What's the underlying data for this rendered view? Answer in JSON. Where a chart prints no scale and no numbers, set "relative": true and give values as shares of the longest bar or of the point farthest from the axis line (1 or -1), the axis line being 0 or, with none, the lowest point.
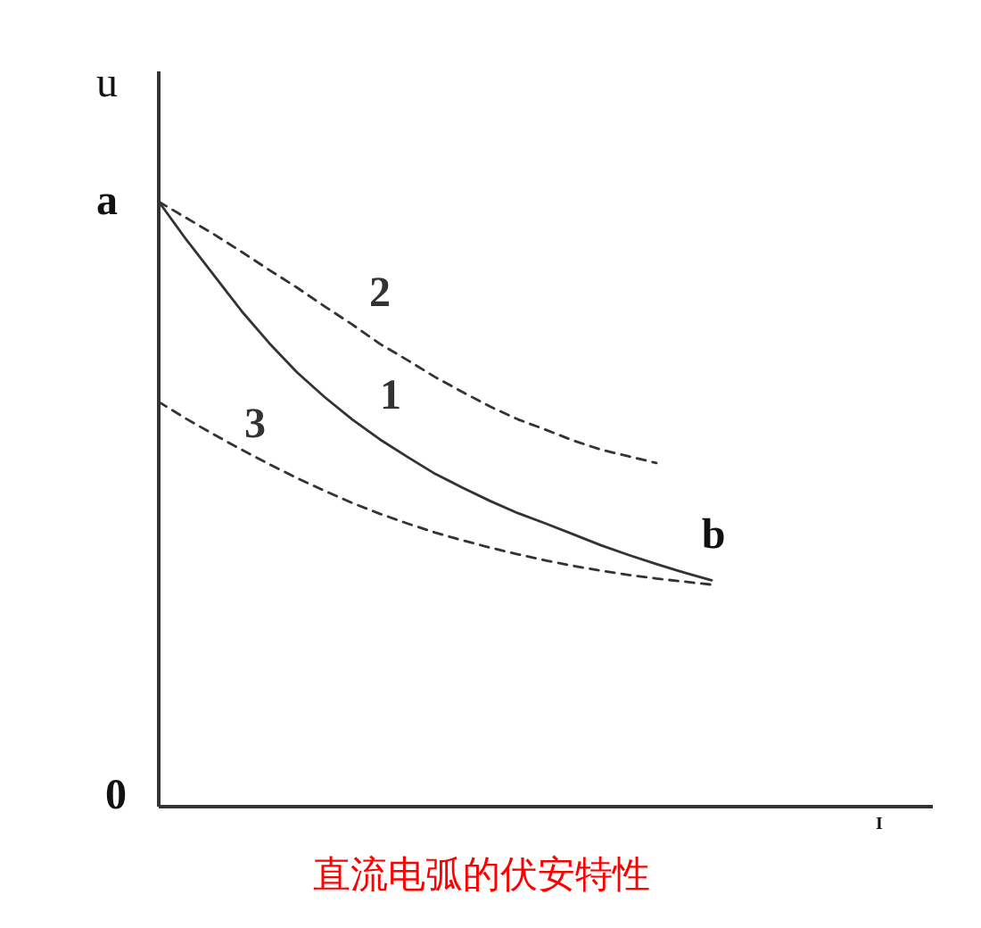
{
  "chart_data": {
    "type": "line",
    "title": "直流电弧的伏安特性",
    "xlabel": "I",
    "ylabel": "u",
    "relative": true,
    "categories": [
      null,
      null,
      null,
      null,
      null,
      null,
      null,
      null,
      null,
      null,
      null,
      null,
      null,
      null,
      null,
      null,
      null,
      null,
      null,
      null,
      null,
      null,
      null,
      null,
      null,
      null,
      null,
      null,
      null
    ],
    "series": [
      {
        "name": "1",
        "color": "#333333",
        "line_style": "solid",
        "values": [
          1.0,
          0.937,
          0.878,
          0.819,
          0.766,
          0.718,
          0.677,
          0.64,
          0.607,
          0.578,
          0.55,
          0.527,
          0.505,
          0.485,
          0.468,
          0.45,
          0.432,
          0.416,
          0.401,
          0.387,
          0.374,
          null,
          null,
          null,
          null,
          null,
          null,
          null,
          null
        ]
      },
      {
        "name": "2",
        "color": "#333333",
        "line_style": "dashed",
        "values": [
          1.0,
          0.973,
          0.946,
          0.917,
          0.887,
          0.858,
          0.827,
          0.797,
          0.765,
          0.738,
          0.71,
          0.685,
          0.661,
          0.64,
          0.623,
          0.605,
          0.59,
          0.579,
          0.568,
          null,
          null,
          null,
          null,
          null,
          null,
          null,
          null,
          null,
          null
        ]
      },
      {
        "name": "3",
        "color": "#333333",
        "line_style": "dashed",
        "values": [
          0.669,
          0.641,
          0.615,
          0.59,
          0.566,
          0.543,
          0.522,
          0.502,
          0.484,
          0.468,
          0.453,
          0.44,
          0.428,
          0.417,
          0.407,
          0.398,
          0.39,
          0.383,
          0.377,
          0.372,
          0.367,
          null,
          null,
          null,
          null,
          null,
          null,
          null,
          null
        ]
      }
    ],
    "annotations": [
      "a",
      "b",
      "0"
    ]
  }
}
